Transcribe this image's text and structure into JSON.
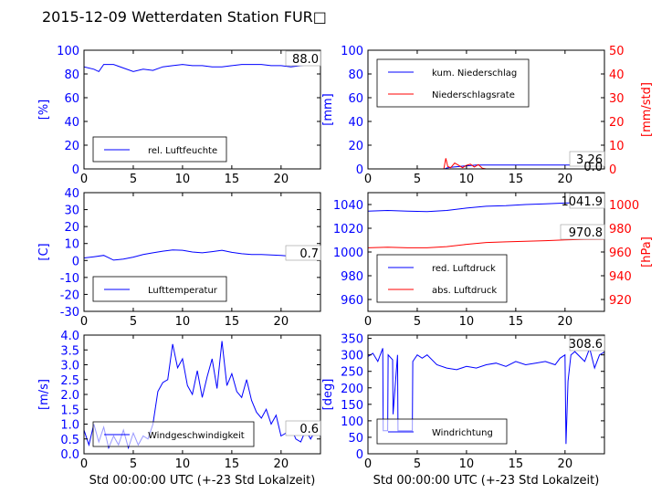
{
  "page": {
    "title": "2015-12-09 Wetterdaten Station FUR□"
  },
  "colors": {
    "blue": "#0000ff",
    "red": "#ff0000",
    "axis": "#000000",
    "background": "#ffffff"
  },
  "chart_data": [
    {
      "id": "humidity",
      "type": "line",
      "xlim": [
        0,
        24
      ],
      "xticks": [
        0,
        5,
        10,
        15,
        20
      ],
      "xlabel": "",
      "left_axis": {
        "label": "[%]",
        "ylim": [
          0,
          100
        ],
        "ticks": [
          0,
          20,
          40,
          60,
          80,
          100
        ],
        "color": "blue"
      },
      "current_value": "88.0",
      "legend": {
        "placement": "lower-left"
      },
      "series": [
        {
          "name": "rel. Luftfeuchte",
          "axis": "left",
          "color": "blue",
          "x": [
            0,
            1,
            1.5,
            2,
            3,
            4,
            5,
            6,
            7,
            8,
            9,
            10,
            11,
            12,
            13,
            14,
            15,
            16,
            17,
            18,
            19,
            20,
            21,
            22,
            23,
            24
          ],
          "y": [
            86,
            84,
            82,
            88,
            88,
            85,
            82,
            84,
            83,
            86,
            87,
            88,
            87,
            87,
            86,
            86,
            87,
            88,
            88,
            88,
            87,
            87,
            86,
            87,
            88,
            88
          ]
        }
      ]
    },
    {
      "id": "precipitation",
      "type": "line",
      "xlim": [
        0,
        24
      ],
      "xticks": [
        0,
        5,
        10,
        15,
        20
      ],
      "xlabel": "",
      "left_axis": {
        "label": "[mm]",
        "ylim": [
          0,
          100
        ],
        "ticks": [
          0,
          20,
          40,
          60,
          80,
          100
        ],
        "color": "blue"
      },
      "right_axis": {
        "label": "[mm/std]",
        "ylim": [
          0,
          50
        ],
        "ticks": [
          0,
          10,
          20,
          30,
          40,
          50
        ],
        "color": "red"
      },
      "current_value": "3.26",
      "current_value_2": "0.0",
      "legend": {
        "placement": "upper-left"
      },
      "series": [
        {
          "name": "kum. Niederschlag",
          "axis": "left",
          "color": "blue",
          "x": [
            0,
            7.8,
            8.0,
            8.5,
            9.5,
            10.5,
            11.0,
            12.0,
            24
          ],
          "y": [
            0,
            0,
            0.8,
            1.5,
            2.2,
            2.9,
            3.2,
            3.26,
            3.26
          ]
        },
        {
          "name": "Niederschlagsrate",
          "axis": "right",
          "color": "red",
          "x": [
            0,
            7.7,
            7.9,
            8.1,
            8.4,
            8.8,
            9.2,
            9.6,
            10.0,
            10.4,
            10.8,
            11.2,
            11.6,
            12.0,
            24
          ],
          "y": [
            0,
            0,
            4.5,
            1.0,
            0.5,
            2.5,
            1.5,
            0.5,
            1.5,
            2.0,
            0.8,
            1.8,
            0.3,
            0,
            0
          ]
        }
      ]
    },
    {
      "id": "temperature",
      "type": "line",
      "xlim": [
        0,
        24
      ],
      "xticks": [
        0,
        5,
        10,
        15,
        20
      ],
      "xlabel": "",
      "left_axis": {
        "label": "[C]",
        "ylim": [
          -30,
          40
        ],
        "ticks": [
          -30,
          -20,
          -10,
          0,
          10,
          20,
          30,
          40
        ],
        "color": "blue"
      },
      "current_value": "0.7",
      "legend": {
        "placement": "lower-left"
      },
      "series": [
        {
          "name": "Lufttemperatur",
          "axis": "left",
          "color": "blue",
          "x": [
            0,
            1,
            2,
            3,
            4,
            5,
            6,
            7,
            8,
            9,
            10,
            11,
            12,
            13,
            14,
            15,
            16,
            17,
            18,
            19,
            20,
            21,
            22,
            23,
            24
          ],
          "y": [
            1.5,
            2.2,
            3.0,
            0.2,
            0.8,
            2.0,
            3.5,
            4.5,
            5.5,
            6.2,
            6.0,
            5.0,
            4.5,
            5.2,
            6.0,
            4.8,
            4.0,
            3.5,
            3.5,
            3.2,
            3.0,
            2.5,
            2.0,
            1.2,
            0.7
          ]
        }
      ]
    },
    {
      "id": "pressure",
      "type": "line",
      "xlim": [
        0,
        24
      ],
      "xticks": [
        0,
        5,
        10,
        15,
        20
      ],
      "xlabel": "",
      "left_axis": {
        "label": "",
        "ylim": [
          950,
          1050
        ],
        "ticks": [
          960,
          980,
          1000,
          1020,
          1040
        ],
        "color": "blue"
      },
      "right_axis": {
        "label": "[hPa]",
        "ylim": [
          910,
          1010
        ],
        "ticks": [
          920,
          940,
          960,
          980,
          1000
        ],
        "color": "red"
      },
      "current_value": "1041.9",
      "current_value_2": "970.8",
      "legend": {
        "placement": "lower-left"
      },
      "series": [
        {
          "name": "red. Luftdruck",
          "axis": "left",
          "color": "blue",
          "x": [
            0,
            2,
            4,
            6,
            8,
            10,
            12,
            14,
            16,
            18,
            20,
            22,
            24
          ],
          "y": [
            1034.5,
            1035,
            1034.5,
            1034,
            1035,
            1037,
            1038.5,
            1039,
            1040,
            1040.5,
            1041.2,
            1041.7,
            1041.9
          ]
        },
        {
          "name": "abs. Luftdruck",
          "axis": "right",
          "color": "red",
          "x": [
            0,
            2,
            4,
            6,
            8,
            10,
            12,
            14,
            16,
            18,
            20,
            22,
            24
          ],
          "y": [
            963.5,
            964,
            963.5,
            963.5,
            964.5,
            966.5,
            968,
            968.5,
            969,
            969.5,
            970.2,
            970.7,
            970.8
          ]
        }
      ]
    },
    {
      "id": "windspeed",
      "type": "line",
      "xlim": [
        0,
        24
      ],
      "xticks": [
        0,
        5,
        10,
        15,
        20
      ],
      "xlabel": "Std 00:00:00 UTC (+-23 Std Lokalzeit)",
      "left_axis": {
        "label": "[m/s]",
        "ylim": [
          0,
          4
        ],
        "ticks": [
          0.0,
          0.5,
          1.0,
          1.5,
          2.0,
          2.5,
          3.0,
          3.5,
          4.0
        ],
        "color": "blue"
      },
      "current_value": "0.6",
      "legend": {
        "placement": "lower-center"
      },
      "series": [
        {
          "name": "Windgeschwindigkeit",
          "axis": "left",
          "color": "blue",
          "x": [
            0,
            0.5,
            1,
            1.5,
            2,
            2.5,
            3,
            3.5,
            4,
            4.5,
            5,
            5.5,
            6,
            6.5,
            7,
            7.5,
            8,
            8.5,
            9,
            9.5,
            10,
            10.5,
            11,
            11.5,
            12,
            12.5,
            13,
            13.5,
            14,
            14.5,
            15,
            15.5,
            16,
            16.5,
            17,
            17.5,
            18,
            18.5,
            19,
            19.5,
            20,
            20.5,
            21,
            21.5,
            22,
            22.5,
            23,
            23.5,
            24
          ],
          "y": [
            0.8,
            0.3,
            1.0,
            0.4,
            0.9,
            0.2,
            0.6,
            0.3,
            0.8,
            0.2,
            0.7,
            0.3,
            0.6,
            0.5,
            1.0,
            2.1,
            2.4,
            2.5,
            3.7,
            2.9,
            3.2,
            2.3,
            2.0,
            2.8,
            1.9,
            2.6,
            3.2,
            2.2,
            3.8,
            2.3,
            2.7,
            2.1,
            1.9,
            2.5,
            1.8,
            1.4,
            1.2,
            1.5,
            1.0,
            1.3,
            0.6,
            0.7,
            0.9,
            0.5,
            0.4,
            0.8,
            0.5,
            0.8,
            0.6
          ]
        }
      ]
    },
    {
      "id": "winddirection",
      "type": "line",
      "xlim": [
        0,
        24
      ],
      "xticks": [
        0,
        5,
        10,
        15,
        20
      ],
      "xlabel": "Std 00:00:00 UTC (+-23 Std Lokalzeit)",
      "left_axis": {
        "label": "[deg]",
        "ylim": [
          0,
          360
        ],
        "ticks": [
          0,
          50,
          100,
          150,
          200,
          250,
          300,
          350
        ],
        "color": "blue"
      },
      "current_value": "308.6",
      "legend": {
        "placement": "lower-left"
      },
      "series": [
        {
          "name": "Windrichtung",
          "axis": "left",
          "color": "blue",
          "x": [
            0,
            0.5,
            1,
            1.5,
            1.55,
            2.0,
            2.05,
            2.5,
            2.55,
            3,
            3.05,
            4.5,
            4.55,
            5,
            5.5,
            6,
            7,
            8,
            9,
            10,
            11,
            12,
            13,
            14,
            15,
            16,
            17,
            18,
            19,
            19.5,
            20,
            20.1,
            20.3,
            20.6,
            21,
            22,
            22.5,
            23,
            23.5,
            24
          ],
          "y": [
            295,
            305,
            280,
            320,
            70,
            70,
            300,
            285,
            120,
            300,
            70,
            70,
            280,
            300,
            290,
            300,
            270,
            260,
            255,
            265,
            260,
            270,
            275,
            265,
            280,
            270,
            275,
            280,
            270,
            290,
            300,
            30,
            220,
            300,
            310,
            280,
            320,
            260,
            300,
            308.6
          ]
        }
      ]
    }
  ]
}
